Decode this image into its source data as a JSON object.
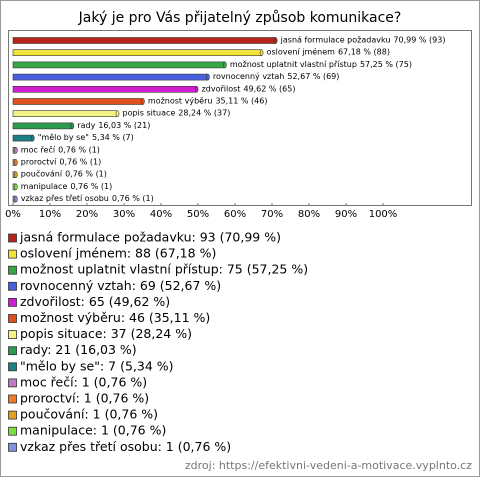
{
  "chart_data": {
    "type": "bar",
    "orientation": "horizontal",
    "title": "Jaký je pro Vás přijatelný způsob komunikace?",
    "categories": [
      "jasná formulace požadavku",
      "oslovení jménem",
      "možnost uplatnit vlastní přístup",
      "rovnocenný vztah",
      "zdvořilost",
      "možnost výběru",
      "popis situace",
      "rady",
      "\"mělo by se\"",
      "moc řečí",
      "proroctví",
      "poučování",
      "manipulace",
      "vzkaz přes třetí osobu"
    ],
    "values": [
      70.99,
      67.18,
      57.25,
      52.67,
      49.62,
      35.11,
      28.24,
      16.03,
      5.34,
      0.76,
      0.76,
      0.76,
      0.76,
      0.76
    ],
    "value_labels": [
      "70,99 % (93)",
      "67,18 % (88)",
      "57,25 % (75)",
      "52,67 % (69)",
      "49,62 % (65)",
      "35,11 % (46)",
      "28,24 % (37)",
      "16,03 % (21)",
      "5,34 % (7)",
      "0,76 % (1)",
      "0,76 % (1)",
      "0,76 % (1)",
      "0,76 % (1)",
      "0,76 % (1)"
    ],
    "colors": [
      "#b8231c",
      "#f2e33a",
      "#35a845",
      "#4a5fe0",
      "#d21ed2",
      "#e0501e",
      "#f2f286",
      "#2e9a4e",
      "#1f7f86",
      "#c07ac0",
      "#f07a2a",
      "#e0a020",
      "#7ee040",
      "#7f90e0"
    ],
    "legend_labels": [
      "jasná formulace požadavku: 93 (70,99 %)",
      "oslovení jménem: 88 (67,18 %)",
      "možnost uplatnit vlastní přístup: 75 (57,25 %)",
      "rovnocenný vztah: 69 (52,67 %)",
      "zdvořilost: 65 (49,62 %)",
      "možnost výběru: 46 (35,11 %)",
      "popis situace: 37 (28,24 %)",
      "rady: 21 (16,03 %)",
      "\"mělo by se\": 7 (5,34 %)",
      "moc řečí: 1 (0,76 %)",
      "proroctví: 1 (0,76 %)",
      "poučování: 1 (0,76 %)",
      "manipulace: 1 (0,76 %)",
      "vzkaz přes třetí osobu: 1 (0,76 %)"
    ],
    "xlim": [
      0,
      100
    ],
    "xticks": [
      {
        "value": 0,
        "label": "0%"
      },
      {
        "value": 10,
        "label": "10%"
      },
      {
        "value": 20,
        "label": "20%"
      },
      {
        "value": 30,
        "label": "30%"
      },
      {
        "value": 40,
        "label": "40%"
      },
      {
        "value": 50,
        "label": "50%"
      },
      {
        "value": 60,
        "label": "60%"
      },
      {
        "value": 70,
        "label": "70%"
      },
      {
        "value": 80,
        "label": "80%"
      },
      {
        "value": 90,
        "label": "90%"
      },
      {
        "value": 100,
        "label": "100%"
      }
    ],
    "source": "zdroj: https://efektivni-vedeni-a-motivace.vyplnto.cz"
  }
}
